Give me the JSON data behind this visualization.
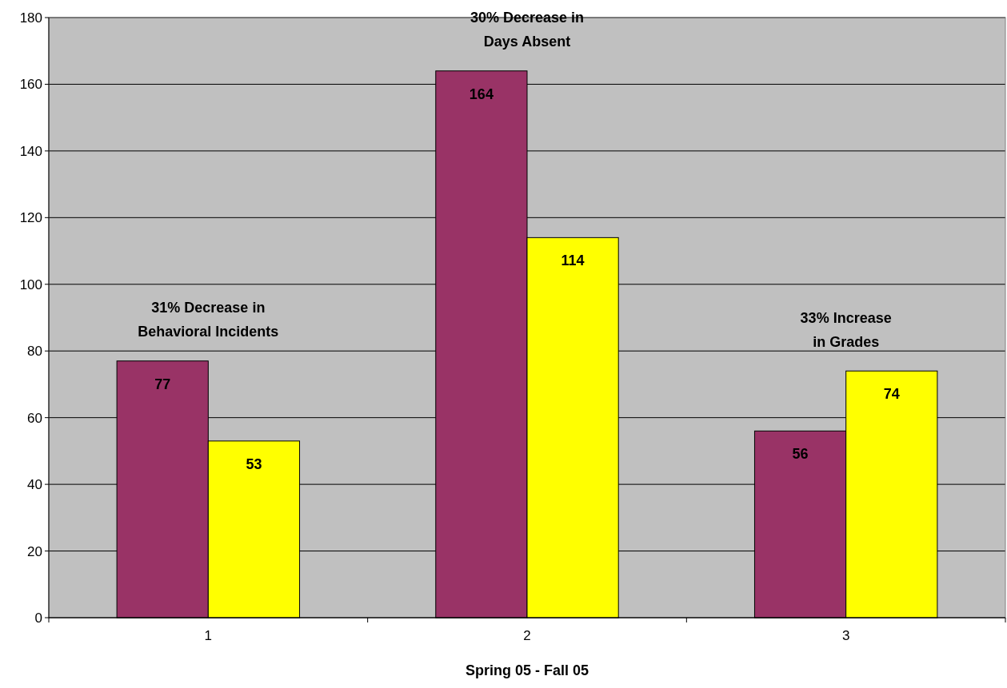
{
  "chart_data": {
    "type": "bar",
    "xlabel": "Spring 05 - Fall 05",
    "categories": [
      "1",
      "2",
      "3"
    ],
    "series": [
      {
        "color": "#993366",
        "values": [
          77,
          164,
          56
        ]
      },
      {
        "color": "#ffff00",
        "values": [
          53,
          114,
          74
        ]
      }
    ],
    "ylim": [
      0,
      180
    ],
    "yticks": [
      0,
      20,
      40,
      60,
      80,
      100,
      120,
      140,
      160,
      180
    ],
    "grid": "y",
    "data_labels": true,
    "annotations": [
      "31% Decrease in\nBehavioral Incidents",
      "30% Decrease in\nDays Absent",
      "33% Increase\nin Grades"
    ]
  }
}
